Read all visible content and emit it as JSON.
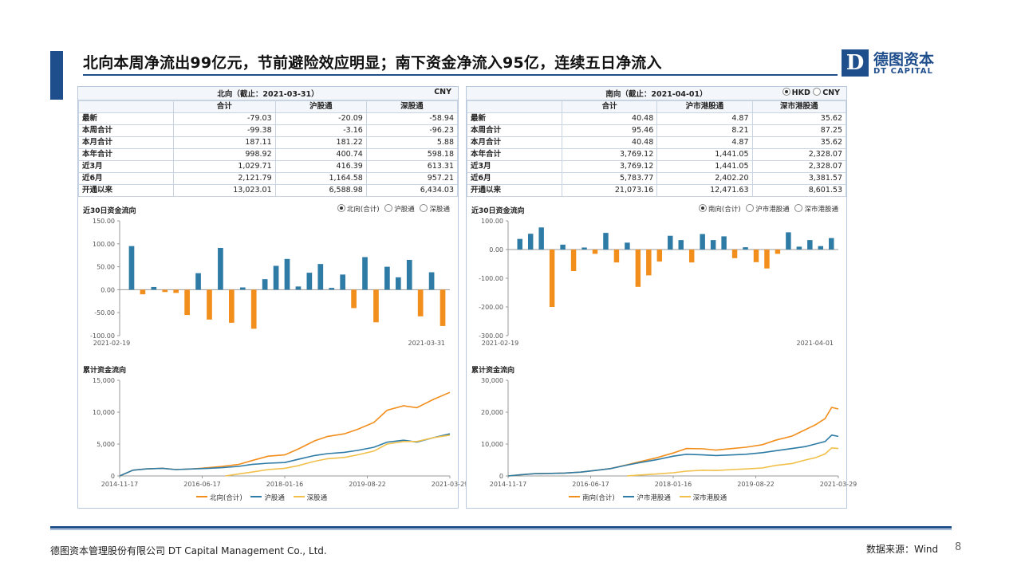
{
  "title": "北向本周净流出99亿元，节前避险效应明显；南下资金净流入95亿，连续五日净流入",
  "logo": {
    "mark": "D",
    "cn": "德图资本",
    "en": "DT CAPITAL"
  },
  "colors": {
    "brand": "#1f4e8c",
    "orange": "#f28e1c",
    "blue": "#2e7ba6",
    "yellow": "#f0c04a"
  },
  "left": {
    "caption": "北向（截止：2021-03-31）",
    "currency": "CNY",
    "columns": [
      "合计",
      "沪股通",
      "深股通"
    ],
    "rows": [
      {
        "label": "最新",
        "vals": [
          "-79.03",
          "-20.09",
          "-58.94"
        ]
      },
      {
        "label": "本周合计",
        "vals": [
          "-99.38",
          "-3.16",
          "-96.23"
        ]
      },
      {
        "label": "本月合计",
        "vals": [
          "187.11",
          "181.22",
          "5.88"
        ]
      },
      {
        "label": "本年合计",
        "vals": [
          "998.92",
          "400.74",
          "598.18"
        ]
      },
      {
        "label": "近3月",
        "vals": [
          "1,029.71",
          "416.39",
          "613.31"
        ]
      },
      {
        "label": "近6月",
        "vals": [
          "2,121.79",
          "1,164.58",
          "957.21"
        ]
      },
      {
        "label": "开通以来",
        "vals": [
          "13,023.01",
          "6,588.98",
          "6,434.03"
        ]
      }
    ],
    "bar_title": "近30日资金流向",
    "bar_options": [
      "北向(合计)",
      "沪股通",
      "深股通"
    ],
    "cum_title": "累计资金流向",
    "cum_legend": [
      "北向(合计)",
      "沪股通",
      "深股通"
    ]
  },
  "right": {
    "caption": "南向（截止：2021-04-01）",
    "currency_options": [
      "HKD",
      "CNY"
    ],
    "columns": [
      "合计",
      "沪市港股通",
      "深市港股通"
    ],
    "rows": [
      {
        "label": "最新",
        "vals": [
          "40.48",
          "4.87",
          "35.62"
        ]
      },
      {
        "label": "本周合计",
        "vals": [
          "95.46",
          "8.21",
          "87.25"
        ]
      },
      {
        "label": "本月合计",
        "vals": [
          "40.48",
          "4.87",
          "35.62"
        ]
      },
      {
        "label": "本年合计",
        "vals": [
          "3,769.12",
          "1,441.05",
          "2,328.07"
        ]
      },
      {
        "label": "近3月",
        "vals": [
          "3,769.12",
          "1,441.05",
          "2,328.07"
        ]
      },
      {
        "label": "近6月",
        "vals": [
          "5,783.77",
          "2,402.20",
          "3,381.57"
        ]
      },
      {
        "label": "开通以来",
        "vals": [
          "21,073.16",
          "12,471.63",
          "8,601.53"
        ]
      }
    ],
    "bar_title": "近30日资金流向",
    "bar_options": [
      "南向(合计)",
      "沪市港股通",
      "深市港股通"
    ],
    "cum_title": "累计资金流向",
    "cum_legend": [
      "南向(合计)",
      "沪市港股通",
      "深市港股通"
    ]
  },
  "chart_data": [
    {
      "type": "bar",
      "title": "近30日资金流向",
      "series_name": "北向(合计)",
      "ylim": [
        -100,
        150
      ],
      "yticks": [
        "150.00",
        "100.00",
        "50.00",
        "0.00",
        "-50.00",
        "-100.00"
      ],
      "xlabels": [
        "2021-02-19",
        "2021-03-31"
      ],
      "values": [
        95,
        -10,
        6,
        -5,
        -7,
        -55,
        36,
        -65,
        91,
        -72,
        5,
        -85,
        23,
        52,
        67,
        7,
        37,
        56,
        4,
        33,
        -40,
        71,
        -71,
        50,
        27,
        65,
        -58,
        38,
        -79
      ]
    },
    {
      "type": "bar",
      "title": "近30日资金流向",
      "series_name": "南向(合计)",
      "ylim": [
        -300,
        100
      ],
      "yticks": [
        "100.00",
        "0.00",
        "-100.00",
        "-200.00",
        "-300.00"
      ],
      "xlabels": [
        "2021-02-19",
        "2021-04-01"
      ],
      "values": [
        37,
        55,
        77,
        -200,
        17,
        -75,
        7,
        -15,
        58,
        -45,
        24,
        -130,
        -90,
        -42,
        48,
        33,
        -45,
        54,
        33,
        46,
        -30,
        8,
        -44,
        -66,
        -15,
        60,
        10,
        33,
        12,
        40
      ]
    },
    {
      "type": "line",
      "title": "累计资金流向",
      "ylim": [
        0,
        15000
      ],
      "yticks": [
        "15,000",
        "10,000",
        "5,000",
        "0"
      ],
      "xlabels": [
        "2014-11-17",
        "2016-06-17",
        "2018-01-16",
        "2019-08-22",
        "2021-03-29"
      ],
      "series": [
        {
          "name": "北向(合计)",
          "x": [
            0,
            0.04,
            0.08,
            0.13,
            0.17,
            0.22,
            0.27,
            0.31,
            0.36,
            0.4,
            0.45,
            0.5,
            0.54,
            0.59,
            0.63,
            0.68,
            0.72,
            0.77,
            0.81,
            0.86,
            0.9,
            0.95,
            1.0
          ],
          "values": [
            0,
            900,
            1100,
            1200,
            1000,
            1100,
            1300,
            1500,
            1800,
            2400,
            3100,
            3300,
            4200,
            5500,
            6200,
            6600,
            7300,
            8400,
            10300,
            11000,
            10700,
            12000,
            13100
          ]
        },
        {
          "name": "沪股通",
          "x": [
            0,
            0.04,
            0.08,
            0.13,
            0.17,
            0.22,
            0.27,
            0.31,
            0.36,
            0.4,
            0.45,
            0.5,
            0.54,
            0.59,
            0.63,
            0.68,
            0.72,
            0.77,
            0.81,
            0.86,
            0.9,
            0.95,
            1.0
          ],
          "values": [
            0,
            900,
            1100,
            1200,
            1000,
            1100,
            1200,
            1300,
            1500,
            1800,
            2000,
            2100,
            2600,
            3200,
            3500,
            3700,
            4000,
            4500,
            5300,
            5600,
            5300,
            6000,
            6600
          ]
        },
        {
          "name": "深股通",
          "x": [
            0.32,
            0.36,
            0.4,
            0.45,
            0.5,
            0.54,
            0.59,
            0.63,
            0.68,
            0.72,
            0.77,
            0.81,
            0.86,
            0.9,
            0.95,
            1.0
          ],
          "values": [
            0,
            300,
            600,
            1000,
            1200,
            1600,
            2300,
            2700,
            2900,
            3300,
            3900,
            5000,
            5400,
            5400,
            6000,
            6400
          ]
        }
      ]
    },
    {
      "type": "line",
      "title": "累计资金流向",
      "ylim": [
        0,
        30000
      ],
      "yticks": [
        "30,000",
        "20,000",
        "10,000",
        "0"
      ],
      "xlabels": [
        "2014-11-17",
        "2016-06-17",
        "2018-01-16",
        "2019-08-22",
        "2021-03-29"
      ],
      "series": [
        {
          "name": "南向(合计)",
          "x": [
            0,
            0.04,
            0.08,
            0.13,
            0.17,
            0.22,
            0.27,
            0.31,
            0.36,
            0.4,
            0.45,
            0.5,
            0.54,
            0.59,
            0.63,
            0.68,
            0.72,
            0.77,
            0.81,
            0.86,
            0.9,
            0.93,
            0.96,
            0.98,
            1.0
          ],
          "values": [
            0,
            400,
            700,
            800,
            900,
            1200,
            1800,
            2300,
            3500,
            4500,
            5700,
            7200,
            8600,
            8500,
            8100,
            8600,
            9000,
            9800,
            11200,
            12500,
            14500,
            16000,
            18000,
            21500,
            21000
          ]
        },
        {
          "name": "沪市港股通",
          "x": [
            0,
            0.04,
            0.08,
            0.13,
            0.17,
            0.22,
            0.27,
            0.31,
            0.36,
            0.4,
            0.45,
            0.5,
            0.54,
            0.59,
            0.63,
            0.68,
            0.72,
            0.77,
            0.81,
            0.86,
            0.9,
            0.93,
            0.96,
            0.98,
            1.0
          ],
          "values": [
            0,
            400,
            700,
            800,
            900,
            1200,
            1800,
            2300,
            3400,
            4200,
            5100,
            6200,
            6800,
            6600,
            6400,
            6600,
            6800,
            7300,
            7900,
            8600,
            9200,
            10000,
            10800,
            12800,
            12400
          ]
        },
        {
          "name": "深市港股通",
          "x": [
            0.36,
            0.4,
            0.45,
            0.5,
            0.54,
            0.59,
            0.63,
            0.68,
            0.72,
            0.77,
            0.81,
            0.86,
            0.9,
            0.93,
            0.96,
            0.98,
            1.0
          ],
          "values": [
            0,
            300,
            600,
            1000,
            1500,
            1800,
            1700,
            2000,
            2200,
            2500,
            3300,
            3900,
            5000,
            5700,
            6900,
            8800,
            8600
          ]
        }
      ]
    }
  ],
  "footer": {
    "company": "德图资本管理股份有限公司  DT Capital Management  Co., Ltd.",
    "source": "数据来源：Wind",
    "page": "8"
  }
}
